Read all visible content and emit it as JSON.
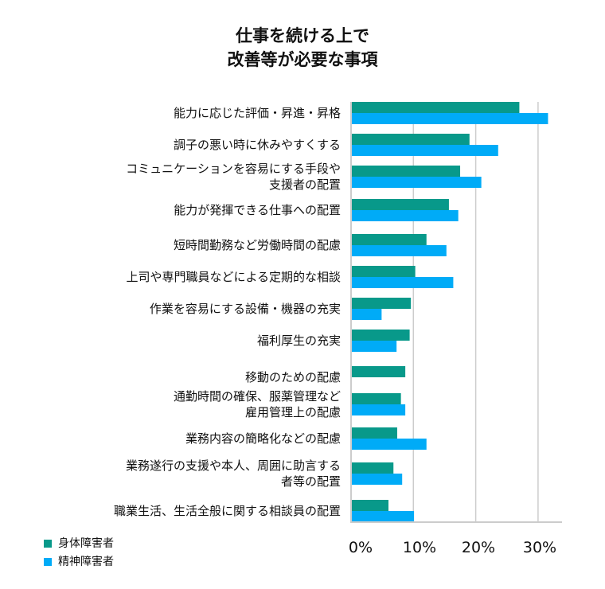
{
  "chart_data": {
    "type": "bar",
    "orientation": "horizontal",
    "title": [
      "仕事を続ける上で",
      "改善等が必要な事項"
    ],
    "categories": [
      [
        "能力に応じた評価・昇進・昇格"
      ],
      [
        "調子の悪い時に休みやすくする"
      ],
      [
        "コミュニケーションを容易にする手段や",
        "支援者の配置"
      ],
      [
        "能力が発揮できる仕事への配置"
      ],
      [
        "短時間勤務など労働時間の配慮"
      ],
      [
        "上司や専門職員などによる定期的な相談"
      ],
      [
        "作業を容易にする設備・機器の充実"
      ],
      [
        "福利厚生の充実"
      ],
      [
        "移動のための配慮"
      ],
      [
        "通勤時間の確保、服薬管理など",
        "雇用管理上の配慮"
      ],
      [
        "業務内容の簡略化などの配慮"
      ],
      [
        "業務遂行の支援や本人、周囲に助言する",
        "者等の配置"
      ],
      [
        "職業生活、生活全般に関する相談員の配置"
      ]
    ],
    "series": [
      {
        "name": "身体障害者",
        "color": "#08998a",
        "values": [
          27.0,
          19.0,
          17.5,
          15.7,
          12.1,
          10.3,
          9.6,
          9.4,
          8.7,
          8.0,
          7.4,
          6.8,
          6.0
        ]
      },
      {
        "name": "精神障害者",
        "color": "#00abf7",
        "values": [
          31.6,
          23.6,
          20.9,
          17.2,
          15.3,
          16.4,
          4.9,
          7.3,
          null,
          8.7,
          12.1,
          8.2,
          10.1
        ]
      }
    ],
    "xticks": [
      "0%",
      "10%",
      "20%",
      "30%"
    ],
    "xlim": [
      0,
      33.5
    ],
    "grid": true,
    "legend": "bottom-left"
  }
}
